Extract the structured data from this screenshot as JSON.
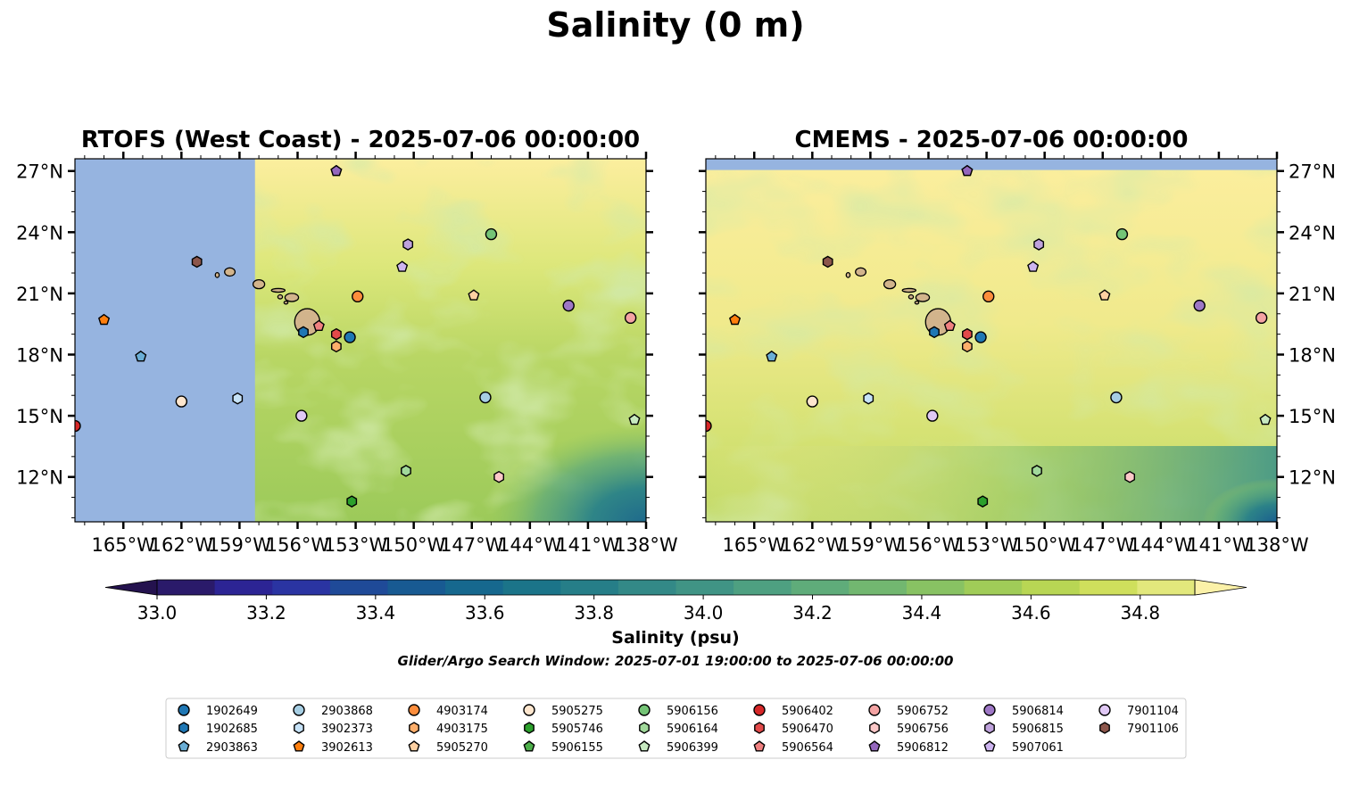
{
  "suptitle": "Salinity (0 m)",
  "colorbar": {
    "label": "Salinity (psu)",
    "ticks": [
      33.0,
      33.2,
      33.4,
      33.6,
      33.8,
      34.0,
      34.2,
      34.4,
      34.6,
      34.8
    ],
    "tick_labels": [
      "33.0",
      "33.2",
      "33.4",
      "33.6",
      "33.8",
      "34.0",
      "34.2",
      "34.4",
      "34.6",
      "34.8"
    ],
    "range": [
      33.0,
      34.9
    ],
    "step": 0.1,
    "colors": [
      "#2a1a6a",
      "#2c2494",
      "#2a34a2",
      "#1f4a98",
      "#185a92",
      "#16688e",
      "#1b7489",
      "#267e88",
      "#338987",
      "#409485",
      "#4ea081",
      "#5fac7a",
      "#72b770",
      "#88c263",
      "#a0cc58",
      "#b8d654",
      "#cfdf5c",
      "#e2e87c"
    ],
    "under_color": "#24124e",
    "over_color": "#fbf1a8",
    "extend": "both"
  },
  "window_note": "Glider/Argo Search Window: 2025-07-01 19:00:00 to 2025-07-06 00:00:00",
  "land_color": "#d2b48c",
  "nodata_color": "#96b4e0",
  "chart_data": [
    {
      "type": "contour-map",
      "title": "RTOFS (West Coast) - 2025-07-06 00:00:00",
      "xlim": [
        -167.5,
        -138.0
      ],
      "ylim": [
        9.8,
        27.6
      ],
      "xticks": [
        -165,
        -162,
        -159,
        -156,
        -153,
        -150,
        -147,
        -144,
        -141,
        -138
      ],
      "xtick_labels": [
        "165°W",
        "162°W",
        "159°W",
        "156°W",
        "153°W",
        "150°W",
        "147°W",
        "144°W",
        "141°W",
        "138°W"
      ],
      "yticks": [
        12,
        15,
        18,
        21,
        24,
        27
      ],
      "ytick_labels": [
        "12°N",
        "15°N",
        "18°N",
        "21°N",
        "24°N",
        "27°N"
      ],
      "ytick_side": "left",
      "nodata_west_of_lon": -158.2,
      "nodata_north_of_lat": null
    },
    {
      "type": "contour-map",
      "title": "CMEMS - 2025-07-06 00:00:00",
      "xlim": [
        -167.5,
        -138.0
      ],
      "ylim": [
        9.8,
        27.6
      ],
      "xticks": [
        -165,
        -162,
        -159,
        -156,
        -153,
        -150,
        -147,
        -144,
        -141,
        -138
      ],
      "xtick_labels": [
        "165°W",
        "162°W",
        "159°W",
        "156°W",
        "153°W",
        "150°W",
        "147°W",
        "144°W",
        "141°W",
        "138°W"
      ],
      "yticks": [
        12,
        15,
        18,
        21,
        24,
        27
      ],
      "ytick_labels": [
        "12°N",
        "15°N",
        "18°N",
        "21°N",
        "24°N",
        "27°N"
      ],
      "ytick_side": "right",
      "nodata_west_of_lon": null,
      "nodata_north_of_lat": 27.05
    }
  ],
  "floats": [
    {
      "id": "1902649",
      "marker": "circle",
      "color": "#1f77b4",
      "lon": -153.3,
      "lat": 18.85
    },
    {
      "id": "1902685",
      "marker": "hexagon",
      "color": "#1f77b4",
      "lon": -155.7,
      "lat": 19.1
    },
    {
      "id": "2903863",
      "marker": "pentagon",
      "color": "#6aaed6",
      "lon": -164.1,
      "lat": 17.9
    },
    {
      "id": "2903868",
      "marker": "circle",
      "color": "#a6cee3",
      "lon": -146.3,
      "lat": 15.9
    },
    {
      "id": "3902373",
      "marker": "hexagon",
      "color": "#c6e2f7",
      "lon": -159.1,
      "lat": 15.85
    },
    {
      "id": "3902613",
      "marker": "pentagon",
      "color": "#ff7f0e",
      "lon": -166.0,
      "lat": 19.7
    },
    {
      "id": "4903174",
      "marker": "circle",
      "color": "#fd8d3c",
      "lon": -152.9,
      "lat": 20.85
    },
    {
      "id": "4903175",
      "marker": "hexagon",
      "color": "#fdae6b",
      "lon": -154.0,
      "lat": 18.4
    },
    {
      "id": "5905270",
      "marker": "pentagon",
      "color": "#fdd0a2",
      "lon": -146.9,
      "lat": 20.9
    },
    {
      "id": "5905275",
      "marker": "circle",
      "color": "#fee6ce",
      "lon": -162.0,
      "lat": 15.7
    },
    {
      "id": "5905746",
      "marker": "hexagon",
      "color": "#2ca02c",
      "lon": -153.2,
      "lat": 10.8
    },
    {
      "id": "5906155",
      "marker": "pentagon",
      "color": "#4daf4a",
      "lon": -154.0,
      "lat": 27.0
    },
    {
      "id": "5906156",
      "marker": "circle",
      "color": "#74c476",
      "lon": -146.0,
      "lat": 23.9
    },
    {
      "id": "5906164",
      "marker": "hexagon",
      "color": "#a1d99b",
      "lon": -150.4,
      "lat": 12.3
    },
    {
      "id": "5906399",
      "marker": "pentagon",
      "color": "#c7e9c0",
      "lon": -138.6,
      "lat": 14.8
    },
    {
      "id": "5906402",
      "marker": "circle",
      "color": "#d62728",
      "lon": -167.5,
      "lat": 14.5
    },
    {
      "id": "5906470",
      "marker": "hexagon",
      "color": "#e34a4a",
      "lon": -154.0,
      "lat": 19.0
    },
    {
      "id": "5906564",
      "marker": "pentagon",
      "color": "#f08080",
      "lon": -154.9,
      "lat": 19.4
    },
    {
      "id": "5906752",
      "marker": "circle",
      "color": "#f4a3a3",
      "lon": -138.8,
      "lat": 19.8
    },
    {
      "id": "5906756",
      "marker": "hexagon",
      "color": "#fcc8c8",
      "lon": -145.6,
      "lat": 12.0
    },
    {
      "id": "5906812",
      "marker": "pentagon",
      "color": "#9467bd",
      "lon": -154.0,
      "lat": 27.0
    },
    {
      "id": "5906814",
      "marker": "circle",
      "color": "#9e77c6",
      "lon": -142.0,
      "lat": 20.4
    },
    {
      "id": "5906815",
      "marker": "hexagon",
      "color": "#bfa2dc",
      "lon": -150.3,
      "lat": 23.4
    },
    {
      "id": "5907061",
      "marker": "pentagon",
      "color": "#cdb4f0",
      "lon": -150.6,
      "lat": 22.3
    },
    {
      "id": "7901104",
      "marker": "circle",
      "color": "#e0c8f5",
      "lon": -155.8,
      "lat": 15.0
    },
    {
      "id": "7901106",
      "marker": "hexagon",
      "color": "#8c564b",
      "lon": -161.2,
      "lat": 22.55
    }
  ],
  "islands": [
    {
      "name": "Hawaii",
      "lon": -155.5,
      "lat": 19.6,
      "rx": 0.65,
      "ry": 0.65
    },
    {
      "name": "Maui",
      "lon": -156.3,
      "lat": 20.8,
      "rx": 0.35,
      "ry": 0.2
    },
    {
      "name": "Molokai",
      "lon": -157.0,
      "lat": 21.15,
      "rx": 0.35,
      "ry": 0.09
    },
    {
      "name": "Lanai",
      "lon": -156.9,
      "lat": 20.83,
      "rx": 0.12,
      "ry": 0.1
    },
    {
      "name": "Kahoolawe",
      "lon": -156.6,
      "lat": 20.55,
      "rx": 0.1,
      "ry": 0.07
    },
    {
      "name": "Oahu",
      "lon": -158.0,
      "lat": 21.45,
      "rx": 0.3,
      "ry": 0.22
    },
    {
      "name": "Kauai",
      "lon": -159.5,
      "lat": 22.05,
      "rx": 0.27,
      "ry": 0.2
    },
    {
      "name": "Niihau",
      "lon": -160.15,
      "lat": 21.9,
      "rx": 0.1,
      "ry": 0.12
    }
  ]
}
